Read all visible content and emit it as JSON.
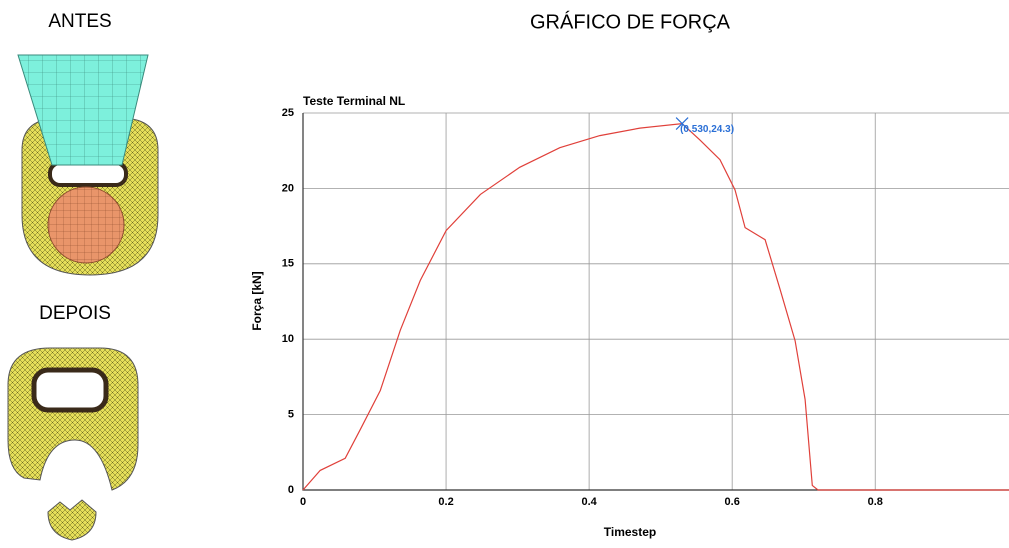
{
  "labels": {
    "before": "ANTES",
    "after": "DEPOIS",
    "heading": "GRÁFICO DE FORÇA"
  },
  "chart_data": {
    "type": "line",
    "title": "Teste Terminal NL",
    "x_label": "Timestep",
    "y_label": "Força [kN]",
    "x": [
      0,
      0.024,
      0.059,
      0.08,
      0.108,
      0.136,
      0.164,
      0.2,
      0.248,
      0.303,
      0.359,
      0.415,
      0.471,
      0.53,
      0.555,
      0.583,
      0.604,
      0.618,
      0.646,
      0.667,
      0.688,
      0.702,
      0.712,
      0.72,
      0.987
    ],
    "values": [
      0,
      1.3,
      2.1,
      4,
      6.6,
      10.6,
      13.9,
      17.2,
      19.6,
      21.4,
      22.7,
      23.5,
      24.0,
      24.3,
      23.2,
      21.9,
      19.9,
      17.4,
      16.6,
      13.3,
      9.9,
      6.0,
      0.3,
      0,
      0
    ],
    "color": "#e0403a",
    "xlim": [
      0,
      0.987
    ],
    "ylim": [
      0,
      25
    ],
    "xticks": [
      0,
      0.2,
      0.4,
      0.6,
      0.8
    ],
    "yticks": [
      0,
      5,
      10,
      15,
      20,
      25
    ],
    "grid": true,
    "annotation": {
      "text": "(0.530,24.3)",
      "x": 0.53,
      "y": 24.3,
      "color": "#2a6fd6"
    }
  }
}
